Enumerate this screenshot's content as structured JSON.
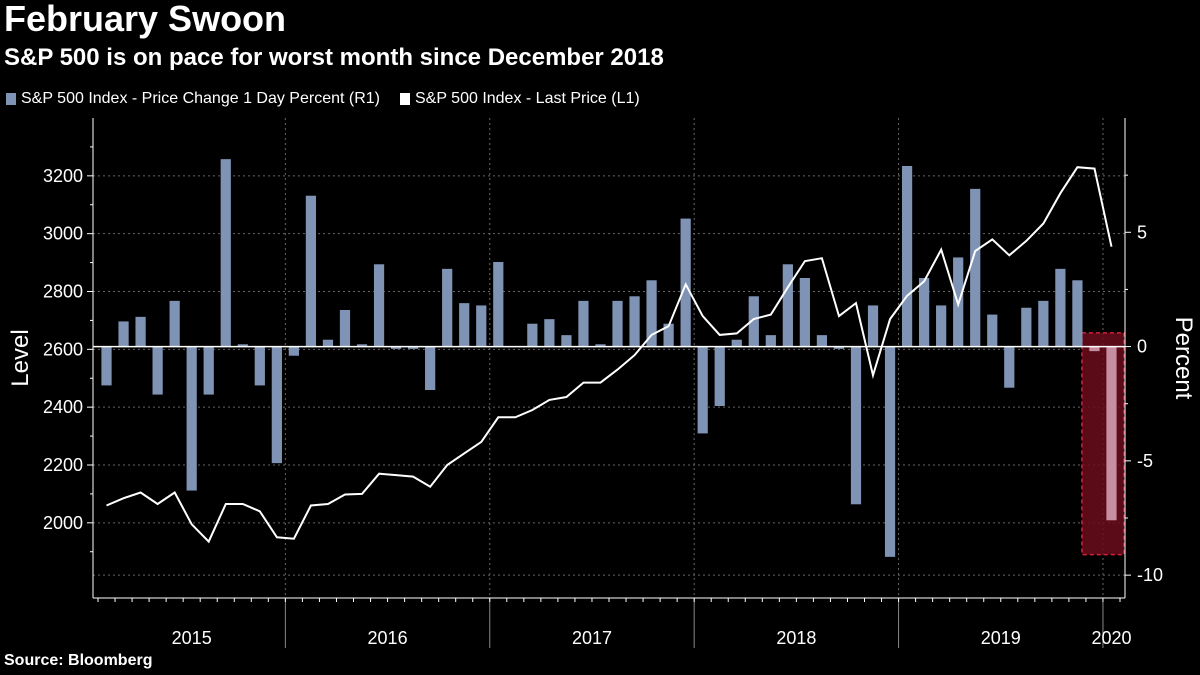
{
  "title": "February Swoon",
  "subtitle": "S&P 500 is on pace for worst month since December 2018",
  "source": "Source: Bloomberg",
  "chart_data": {
    "type": "bar+line",
    "series": [
      {
        "name": "S&P 500 Index - Price Change 1 Day Percent (R1)",
        "axis": "right",
        "type": "bar",
        "color": "#7f93b5",
        "values": [
          -1.7,
          1.1,
          1.3,
          -2.1,
          2.0,
          -6.3,
          -2.1,
          8.2,
          0.1,
          -1.7,
          -5.1,
          -0.4,
          6.6,
          0.3,
          1.6,
          0.1,
          3.6,
          -0.1,
          -0.1,
          -1.9,
          3.4,
          1.9,
          1.8,
          3.7,
          0.0,
          1.0,
          1.2,
          0.5,
          2.0,
          0.1,
          2.0,
          2.2,
          2.9,
          1.0,
          5.6,
          -3.8,
          -2.6,
          0.3,
          2.2,
          0.5,
          3.6,
          3.0,
          0.5,
          -0.1,
          -6.9,
          1.8,
          -9.2,
          7.9,
          3.0,
          1.8,
          3.9,
          6.9,
          1.4,
          -1.8,
          1.7,
          2.0,
          3.4,
          2.9,
          -0.2,
          -7.6
        ]
      },
      {
        "name": "S&P 500 Index - Last Price (L1)",
        "axis": "left",
        "type": "line",
        "color": "#ffffff",
        "values": [
          2060,
          2085,
          2105,
          2065,
          2105,
          1995,
          1935,
          2065,
          2065,
          2040,
          1950,
          1945,
          2060,
          2065,
          2098,
          2100,
          2170,
          2165,
          2160,
          2125,
          2200,
          2240,
          2280,
          2365,
          2365,
          2390,
          2425,
          2435,
          2485,
          2485,
          2530,
          2580,
          2650,
          2680,
          2825,
          2715,
          2650,
          2655,
          2705,
          2720,
          2815,
          2905,
          2915,
          2715,
          2760,
          2510,
          2705,
          2785,
          2835,
          2945,
          2755,
          2940,
          2980,
          2925,
          2975,
          3035,
          3140,
          3230,
          3225,
          2955
        ]
      }
    ],
    "highlight": {
      "from_index": 58,
      "to_index": 59,
      "color": "#6b0c1c",
      "border": "#d61f3a"
    },
    "x_labels": [
      "2015",
      "2016",
      "2017",
      "2018",
      "2019",
      "2020"
    ],
    "ylabel_left": "Level",
    "ylabel_right": "Percent",
    "ylim_left": [
      1740,
      3400
    ],
    "ylim_right": [
      -11,
      10
    ],
    "left_ticks": [
      2000,
      2200,
      2400,
      2600,
      2800,
      3000,
      3200
    ],
    "right_ticks": [
      -10,
      -5,
      0,
      5
    ],
    "grid": true,
    "legend_position": "top-left"
  }
}
